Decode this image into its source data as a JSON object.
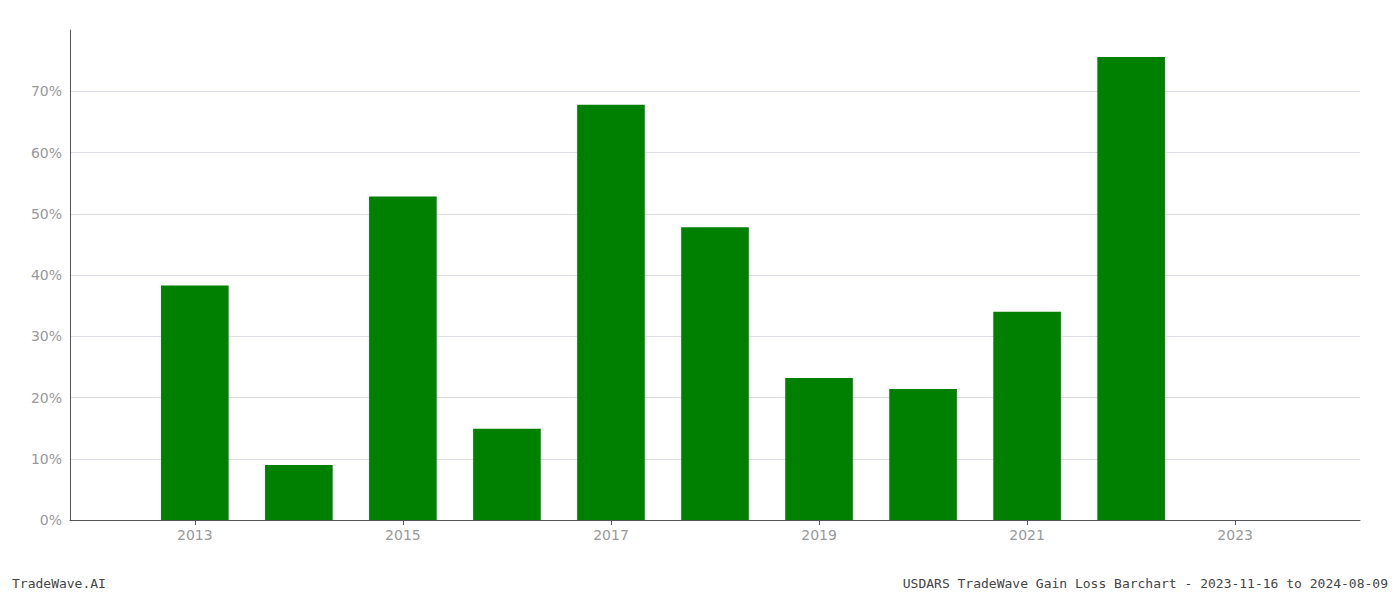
{
  "chart_data": {
    "type": "bar",
    "x": [
      2013,
      2014,
      2015,
      2016,
      2017,
      2018,
      2019,
      2020,
      2021,
      2022
    ],
    "values": [
      0.383,
      0.09,
      0.528,
      0.149,
      0.678,
      0.478,
      0.232,
      0.214,
      0.34,
      0.756
    ],
    "color": "#008000",
    "xlim": [
      2011.8,
      2024.2
    ],
    "xticks": [
      2013,
      2015,
      2017,
      2019,
      2021,
      2023
    ],
    "ylim": [
      0,
      0.8
    ],
    "yticks": [
      {
        "value": 0.0,
        "label": "0%"
      },
      {
        "value": 0.1,
        "label": "10%"
      },
      {
        "value": 0.2,
        "label": "20%"
      },
      {
        "value": 0.3,
        "label": "30%"
      },
      {
        "value": 0.4,
        "label": "40%"
      },
      {
        "value": 0.5,
        "label": "50%"
      },
      {
        "value": 0.6,
        "label": "60%"
      },
      {
        "value": 0.7,
        "label": "70%"
      }
    ],
    "grid": true,
    "annotations": [
      "TradeWave.AI",
      "USDARS TradeWave Gain Loss Barchart - 2023-11-16 to 2024-08-09"
    ]
  }
}
